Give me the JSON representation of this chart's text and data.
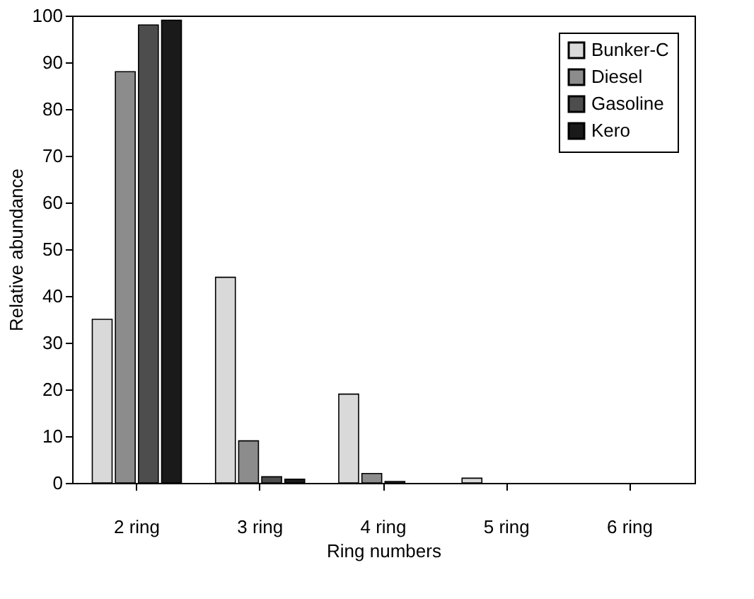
{
  "chart_data": {
    "type": "bar",
    "xlabel": "Ring numbers",
    "ylabel": "Relative abundance",
    "categories": [
      "2 ring",
      "3 ring",
      "4 ring",
      "5 ring",
      "6 ring"
    ],
    "series": [
      {
        "name": "Bunker-C",
        "color": "#d9d9d9",
        "values": [
          35,
          44,
          19,
          1,
          0
        ]
      },
      {
        "name": "Diesel",
        "color": "#8c8c8c",
        "values": [
          88,
          9,
          2,
          null,
          0
        ]
      },
      {
        "name": "Gasoline",
        "color": "#4d4d4d",
        "values": [
          98,
          1.3,
          0.3,
          0,
          0
        ]
      },
      {
        "name": "Kero",
        "color": "#1a1a1a",
        "values": [
          99,
          0.8,
          0,
          0,
          0
        ]
      }
    ],
    "ylim": [
      0,
      100
    ],
    "yticks": [
      0,
      10,
      20,
      30,
      40,
      50,
      60,
      70,
      80,
      90,
      100
    ],
    "grid": false,
    "legend": "top right"
  }
}
